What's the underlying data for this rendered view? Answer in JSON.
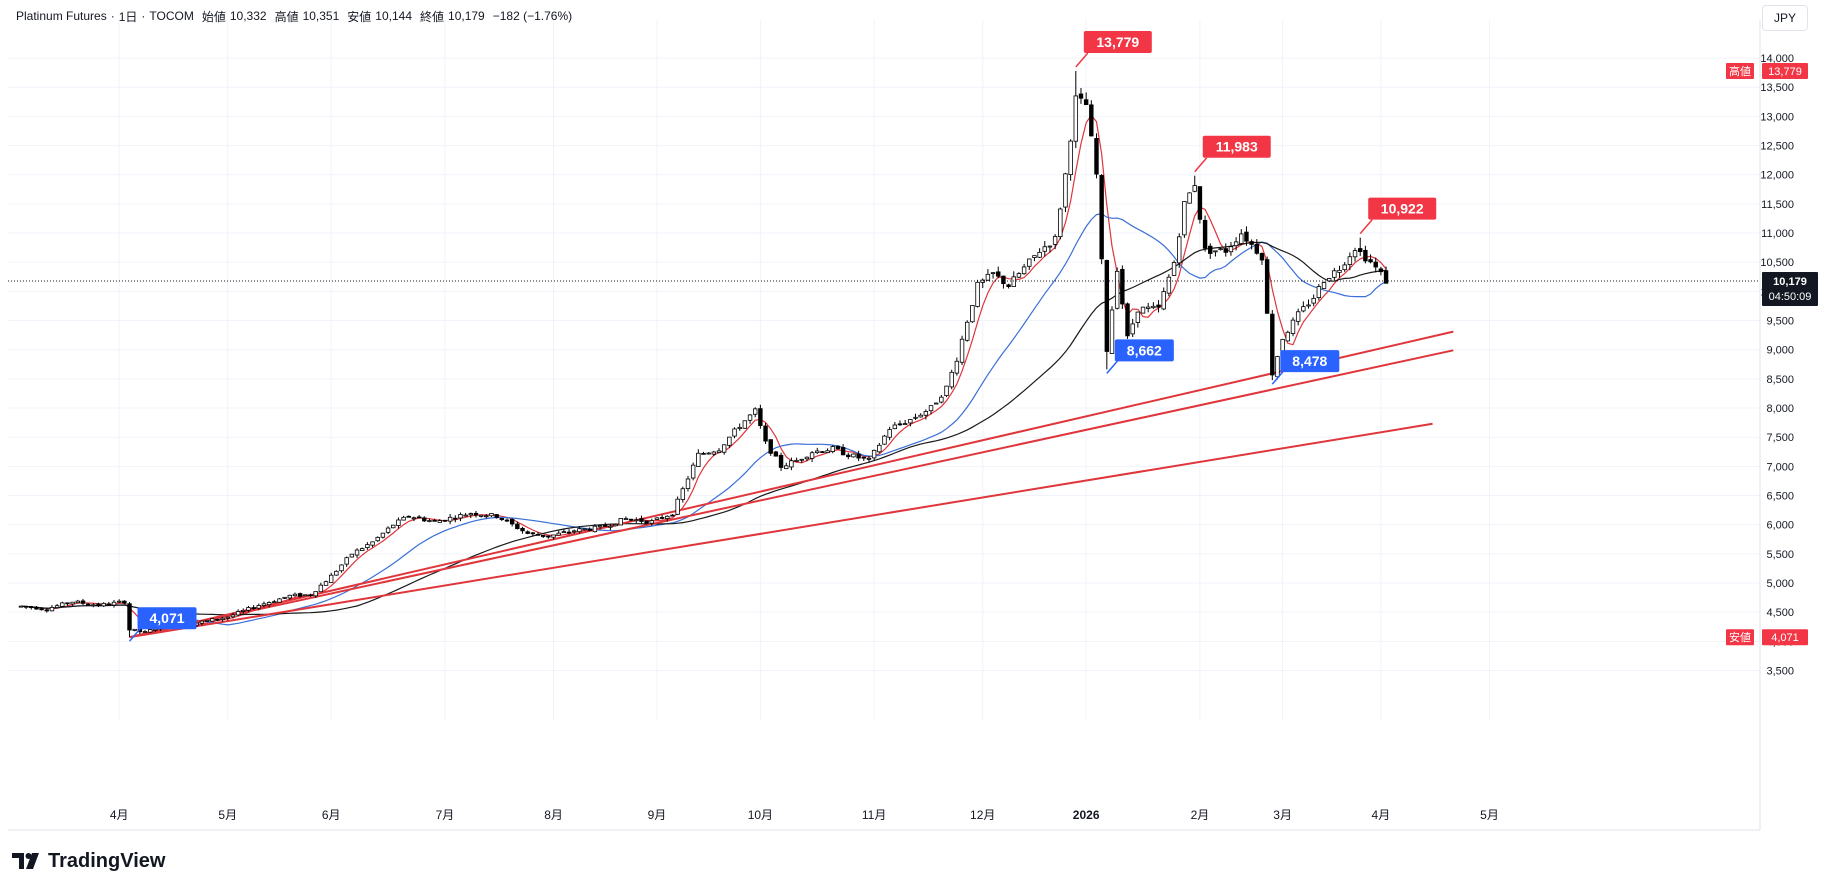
{
  "header": {
    "symbol": "Platinum Futures",
    "interval": "1日",
    "exchange": "TOCOM",
    "open_label": "始値",
    "open": "10,332",
    "high_label": "高値",
    "high": "10,351",
    "low_label": "安値",
    "low": "10,144",
    "close_label": "終値",
    "close": "10,179",
    "change": "−182 (−1.76%)"
  },
  "currency": "JPY",
  "brand": {
    "name": "TradingView",
    "icon": "tradingview-logo-icon"
  },
  "colors": {
    "up": "#ffffff",
    "down": "#000000",
    "candle_border": "#000000",
    "ma_red": "#e0353b",
    "ma_blue": "#3b6fd8",
    "ma_black": "#1a1a1a",
    "trendline": "#e0353b",
    "label_high": "#f23645",
    "label_low": "#2962ff",
    "grid": "#f0f3fa"
  },
  "price_axis_badges": {
    "high": {
      "label": "高値",
      "value": "13,779"
    },
    "low": {
      "label": "安値",
      "value": "4,071"
    },
    "last": {
      "value": "10,179",
      "countdown": "04:50:09"
    }
  },
  "chart_data": {
    "type": "candlestick",
    "title": "",
    "y_ticks": [
      "3,500",
      "4,000",
      "4,500",
      "5,000",
      "5,500",
      "6,000",
      "6,500",
      "7,000",
      "7,500",
      "8,000",
      "8,500",
      "9,000",
      "9,500",
      "10,000",
      "10,500",
      "11,000",
      "11,500",
      "12,000",
      "12,500",
      "13,000",
      "13,500",
      "14,000"
    ],
    "x_ticks": [
      "4月",
      "5月",
      "6月",
      "7月",
      "8月",
      "9月",
      "10月",
      "11月",
      "12月",
      "2026",
      "2月",
      "3月",
      "4月",
      "5月"
    ],
    "ylim": [
      3200,
      14550
    ],
    "xlim": [
      -2.5,
      287
    ],
    "grid": true,
    "series_ma": [
      {
        "role": "short",
        "color": "#e0353b"
      },
      {
        "role": "medium",
        "color": "#3b6fd8"
      },
      {
        "role": "long",
        "color": "#1a1a1a"
      }
    ],
    "anchors": [
      [
        0,
        4600
      ],
      [
        5,
        4560
      ],
      [
        10,
        4680
      ],
      [
        15,
        4620
      ],
      [
        20,
        4680
      ],
      [
        21,
        4200
      ],
      [
        24,
        4150
      ],
      [
        27,
        4260
      ],
      [
        33,
        4300
      ],
      [
        40,
        4420
      ],
      [
        46,
        4620
      ],
      [
        52,
        4780
      ],
      [
        56,
        4800
      ],
      [
        60,
        5120
      ],
      [
        64,
        5500
      ],
      [
        68,
        5700
      ],
      [
        72,
        6000
      ],
      [
        75,
        6150
      ],
      [
        80,
        6050
      ],
      [
        87,
        6200
      ],
      [
        92,
        6150
      ],
      [
        95,
        6000
      ],
      [
        98,
        5850
      ],
      [
        102,
        5800
      ],
      [
        107,
        5900
      ],
      [
        112,
        5950
      ],
      [
        117,
        6100
      ],
      [
        122,
        6050
      ],
      [
        126,
        6200
      ],
      [
        128,
        6600
      ],
      [
        131,
        7200
      ],
      [
        135,
        7300
      ],
      [
        139,
        7700
      ],
      [
        142,
        7950
      ],
      [
        144,
        7400
      ],
      [
        147,
        7000
      ],
      [
        150,
        7100
      ],
      [
        153,
        7250
      ],
      [
        157,
        7300
      ],
      [
        160,
        7200
      ],
      [
        164,
        7100
      ],
      [
        168,
        7650
      ],
      [
        172,
        7800
      ],
      [
        176,
        8000
      ],
      [
        179,
        8350
      ],
      [
        181,
        8850
      ],
      [
        183,
        9500
      ],
      [
        185,
        10100
      ],
      [
        188,
        10300
      ],
      [
        191,
        10100
      ],
      [
        194,
        10400
      ],
      [
        197,
        10700
      ],
      [
        200,
        10900
      ],
      [
        202,
        12000
      ],
      [
        204,
        13300
      ],
      [
        206,
        13200
      ],
      [
        208,
        12000
      ],
      [
        210,
        9000
      ],
      [
        212,
        10400
      ],
      [
        214,
        9200
      ],
      [
        216,
        9700
      ],
      [
        220,
        9700
      ],
      [
        223,
        10500
      ],
      [
        225,
        11500
      ],
      [
        227,
        11850
      ],
      [
        229,
        10700
      ],
      [
        233,
        10700
      ],
      [
        236,
        11000
      ],
      [
        238,
        10800
      ],
      [
        240,
        10600
      ],
      [
        242,
        8600
      ],
      [
        244,
        9200
      ],
      [
        247,
        9600
      ],
      [
        250,
        9900
      ],
      [
        252,
        10200
      ],
      [
        255,
        10400
      ],
      [
        258,
        10750
      ],
      [
        261,
        10500
      ],
      [
        263,
        10300
      ],
      [
        264,
        10179
      ]
    ],
    "annotations": [
      {
        "text": "13,779",
        "kind": "high",
        "x": 204,
        "y": 13779
      },
      {
        "text": "11,983",
        "kind": "high",
        "x": 227,
        "y": 11983
      },
      {
        "text": "10,922",
        "kind": "high",
        "x": 259,
        "y": 10922
      },
      {
        "text": "8,662",
        "kind": "low",
        "x": 210,
        "y": 8662
      },
      {
        "text": "8,478",
        "kind": "low",
        "x": 242,
        "y": 8478
      },
      {
        "text": "4,071",
        "kind": "low",
        "x": 21,
        "y": 4071
      }
    ],
    "trendlines": [
      {
        "from": [
          21,
          4071
        ],
        "to": [
          277,
          9310
        ]
      },
      {
        "from": [
          21,
          4071
        ],
        "to": [
          277,
          8990
        ]
      },
      {
        "from": [
          21,
          4071
        ],
        "to": [
          273,
          7730
        ]
      }
    ],
    "last_price": 10179
  }
}
